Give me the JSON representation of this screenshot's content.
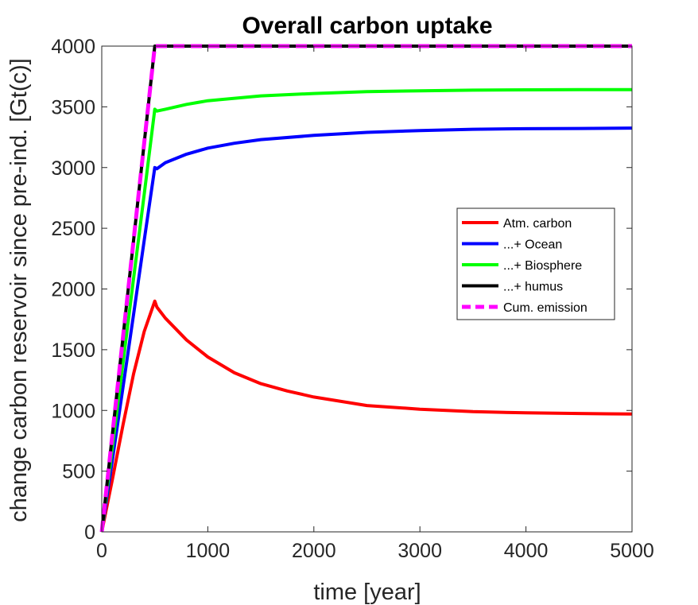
{
  "chart_data": {
    "type": "line",
    "title": "Overall carbon uptake",
    "xlabel": "time [year]",
    "ylabel": "change carbon reservoir since pre-ind. [Gt(c)]",
    "xlim": [
      0,
      5000
    ],
    "ylim": [
      0,
      4000
    ],
    "xticks": [
      0,
      1000,
      2000,
      3000,
      4000,
      5000
    ],
    "yticks": [
      0,
      500,
      1000,
      1500,
      2000,
      2500,
      3000,
      3500,
      4000
    ],
    "grid": false,
    "legend_position": "right",
    "series": [
      {
        "name": "Atm. carbon",
        "color": "#ff0000",
        "style": "solid",
        "points": [
          [
            0,
            0
          ],
          [
            100,
            430
          ],
          [
            200,
            880
          ],
          [
            300,
            1300
          ],
          [
            400,
            1650
          ],
          [
            500,
            1900
          ],
          [
            520,
            1850
          ],
          [
            600,
            1760
          ],
          [
            800,
            1580
          ],
          [
            1000,
            1440
          ],
          [
            1250,
            1310
          ],
          [
            1500,
            1220
          ],
          [
            1750,
            1160
          ],
          [
            2000,
            1110
          ],
          [
            2500,
            1040
          ],
          [
            3000,
            1010
          ],
          [
            3500,
            990
          ],
          [
            4000,
            980
          ],
          [
            4500,
            975
          ],
          [
            5000,
            970
          ]
        ]
      },
      {
        "name": "...+ Ocean",
        "color": "#0000ff",
        "style": "solid",
        "points": [
          [
            0,
            0
          ],
          [
            100,
            590
          ],
          [
            200,
            1190
          ],
          [
            300,
            1790
          ],
          [
            400,
            2400
          ],
          [
            500,
            3000
          ],
          [
            520,
            2990
          ],
          [
            600,
            3040
          ],
          [
            800,
            3110
          ],
          [
            1000,
            3160
          ],
          [
            1250,
            3200
          ],
          [
            1500,
            3230
          ],
          [
            2000,
            3265
          ],
          [
            2500,
            3290
          ],
          [
            3000,
            3305
          ],
          [
            3500,
            3315
          ],
          [
            4000,
            3320
          ],
          [
            4500,
            3322
          ],
          [
            5000,
            3325
          ]
        ]
      },
      {
        "name": "...+ Biosphere",
        "color": "#00ff00",
        "style": "solid",
        "points": [
          [
            0,
            0
          ],
          [
            100,
            695
          ],
          [
            200,
            1390
          ],
          [
            300,
            2085
          ],
          [
            400,
            2780
          ],
          [
            500,
            3480
          ],
          [
            520,
            3465
          ],
          [
            600,
            3480
          ],
          [
            800,
            3520
          ],
          [
            1000,
            3550
          ],
          [
            1500,
            3590
          ],
          [
            2000,
            3610
          ],
          [
            2500,
            3625
          ],
          [
            3000,
            3632
          ],
          [
            3500,
            3637
          ],
          [
            4000,
            3640
          ],
          [
            4500,
            3641
          ],
          [
            5000,
            3642
          ]
        ]
      },
      {
        "name": "...+ humus",
        "color": "#000000",
        "style": "solid",
        "points": [
          [
            0,
            0
          ],
          [
            500,
            4000
          ],
          [
            5000,
            4000
          ]
        ]
      },
      {
        "name": "Cum. emission",
        "color": "#ff00ff",
        "style": "dashed",
        "points": [
          [
            0,
            0
          ],
          [
            500,
            4000
          ],
          [
            5000,
            4000
          ]
        ]
      }
    ]
  }
}
